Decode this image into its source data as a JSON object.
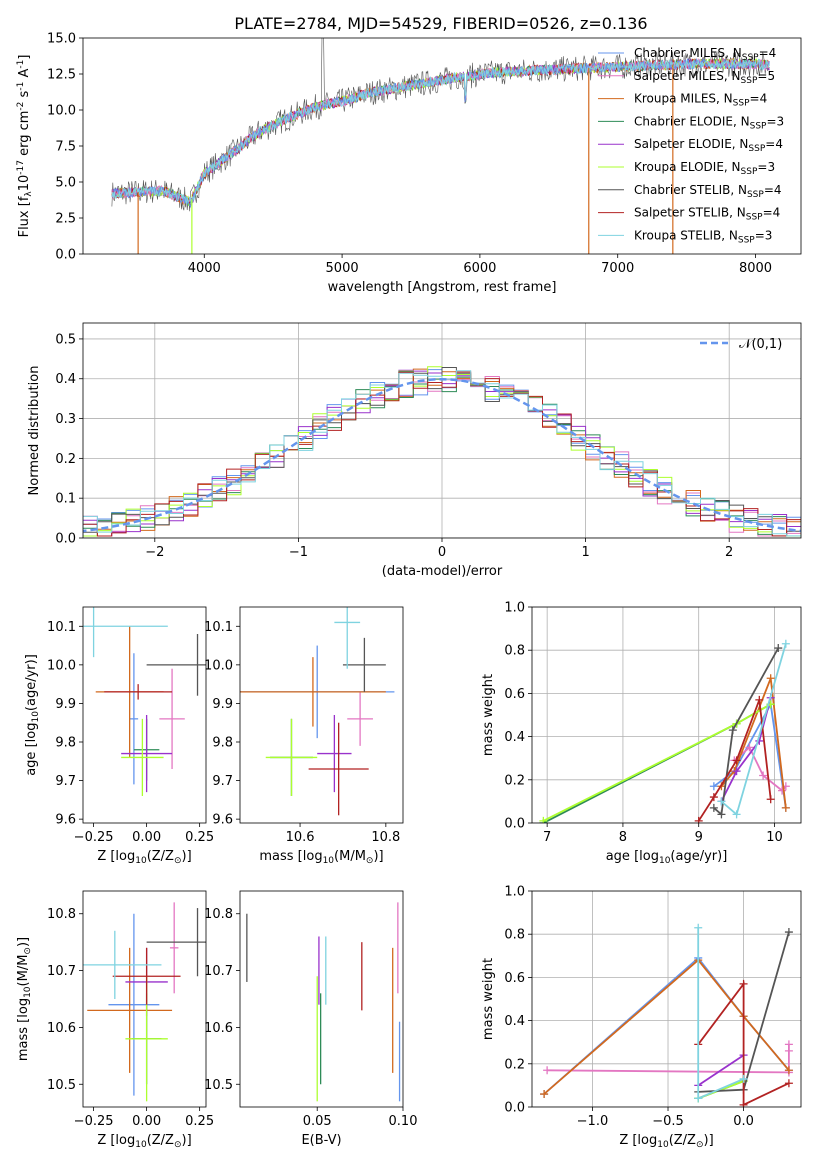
{
  "figure": {
    "title": "PLATE=2784, MJD=54529, FIBERID=0526, z=0.136"
  },
  "chart_data": [
    {
      "type": "line",
      "panel": "spectrum",
      "xlabel": "wavelength [Angstrom, rest frame]",
      "ylabel": "Flux [f$_\\lambda$10$^{-17}$ erg cm$^{-2}$ s$^{-1}$ A$^{-1}$]",
      "xlim": [
        3120,
        8330
      ],
      "ylim": [
        0,
        15
      ],
      "xticks": [
        "4000",
        "5000",
        "6000",
        "7000",
        "8000"
      ],
      "yticks": [
        "0.0",
        "2.5",
        "5.0",
        "7.5",
        "10.0",
        "12.5",
        "15.0"
      ],
      "grid": false,
      "legend_location": "right",
      "legend": [
        {
          "label": "Chabrier MILES, N$_{SSP}$=4",
          "color": "#6495ED"
        },
        {
          "label": "Salpeter MILES, N$_{SSP}$=5",
          "color": "#E377C2"
        },
        {
          "label": "Kroupa MILES, N$_{SSP}$=4",
          "color": "#D2691E"
        },
        {
          "label": "Chabrier ELODIE, N$_{SSP}$=3",
          "color": "#2E8B57"
        },
        {
          "label": "Salpeter ELODIE, N$_{SSP}$=4",
          "color": "#9932CC"
        },
        {
          "label": "Kroupa ELODIE, N$_{SSP}$=3",
          "color": "#ADFF2F"
        },
        {
          "label": "Chabrier STELIB, N$_{SSP}$=4",
          "color": "#555555"
        },
        {
          "label": "Salpeter STELIB, N$_{SSP}$=4",
          "color": "#B22222"
        },
        {
          "label": "Kroupa STELIB, N$_{SSP}$=3",
          "color": "#7FD3E0"
        }
      ],
      "continuum": {
        "x": [
          3330,
          3500,
          3700,
          3900,
          4000,
          4200,
          4400,
          4600,
          4800,
          5000,
          5200,
          5500,
          5800,
          6100,
          6500,
          7000,
          7500,
          8000,
          8100
        ],
        "y": [
          4.2,
          4.3,
          4.4,
          3.6,
          5.6,
          7.0,
          8.5,
          9.4,
          10.2,
          10.6,
          11.2,
          11.7,
          12.2,
          12.6,
          12.8,
          13.0,
          13.2,
          13.2,
          13.1
        ]
      }
    },
    {
      "type": "bar",
      "panel": "residual-histogram",
      "xlabel": "(data-model)/error",
      "ylabel": "Normed distribution",
      "xlim": [
        -2.5,
        2.5
      ],
      "ylim": [
        0,
        0.54
      ],
      "xticks": [
        "−2",
        "−1",
        "0",
        "1",
        "2"
      ],
      "yticks": [
        "0.0",
        "0.1",
        "0.2",
        "0.3",
        "0.4",
        "0.5"
      ],
      "grid": true,
      "legend_location": "upper right",
      "legend": [
        {
          "label": "$\\mathcal{N}(0,1)$",
          "color": "#6495ED",
          "style": "dashed"
        }
      ],
      "series": [
        {
          "name": "Chabrier MILES",
          "color": "#6495ED"
        },
        {
          "name": "Salpeter MILES",
          "color": "#E377C2"
        },
        {
          "name": "Kroupa MILES",
          "color": "#D2691E"
        },
        {
          "name": "Chabrier ELODIE",
          "color": "#2E8B57"
        },
        {
          "name": "Salpeter ELODIE",
          "color": "#9932CC"
        },
        {
          "name": "Kroupa ELODIE",
          "color": "#ADFF2F"
        },
        {
          "name": "Chabrier STELIB",
          "color": "#555555"
        },
        {
          "name": "Salpeter STELIB",
          "color": "#B22222"
        },
        {
          "name": "Kroupa STELIB",
          "color": "#7FD3E0"
        }
      ]
    },
    {
      "type": "scatter",
      "panel": "age-vs-Z",
      "xlabel": "Z [log$_{10}$(Z/Z$_\\odot$)]",
      "ylabel": "age  [log$_{10}$(age/yr)]",
      "xlim": [
        -0.3,
        0.28
      ],
      "ylim": [
        9.59,
        10.15
      ],
      "xticks": [
        "−0.25",
        "0.00",
        "0.25"
      ],
      "yticks": [
        "9.6",
        "9.7",
        "9.8",
        "9.9",
        "10.0",
        "10.1"
      ],
      "grid": false,
      "points": [
        {
          "x": -0.06,
          "y": 9.86,
          "xerr": 0.02,
          "yerr": 0.17,
          "color": "#6495ED"
        },
        {
          "x": 0.12,
          "y": 9.86,
          "xerr": 0.06,
          "yerr": 0.13,
          "color": "#E377C2"
        },
        {
          "x": -0.08,
          "y": 9.93,
          "xerr": 0.16,
          "yerr": 0.17,
          "color": "#D2691E"
        },
        {
          "x": 0.0,
          "y": 9.78,
          "xerr": 0.06,
          "yerr": 0.08,
          "color": "#2E8B57"
        },
        {
          "x": 0.0,
          "y": 9.77,
          "xerr": 0.12,
          "yerr": 0.1,
          "color": "#9932CC"
        },
        {
          "x": -0.02,
          "y": 9.76,
          "xerr": 0.1,
          "yerr": 0.1,
          "color": "#ADFF2F"
        },
        {
          "x": 0.24,
          "y": 10.0,
          "xerr": 0.24,
          "yerr": 0.08,
          "color": "#555555"
        },
        {
          "x": -0.04,
          "y": 9.93,
          "xerr": 0.16,
          "yerr": 0.02,
          "color": "#B22222"
        },
        {
          "x": -0.25,
          "y": 10.1,
          "xerr": 0.35,
          "yerr": 0.08,
          "color": "#7FD3E0"
        }
      ]
    },
    {
      "type": "scatter",
      "panel": "age-vs-mass",
      "xlabel": "mass [log$_{10}$(M/M$_\\odot$)]",
      "ylabel": "",
      "xlim": [
        10.46,
        10.84
      ],
      "ylim": [
        9.59,
        10.15
      ],
      "xticks": [
        "10.6",
        "10.8"
      ],
      "yticks": [
        "9.6",
        "9.7",
        "9.8",
        "9.9",
        "10.0",
        "10.1"
      ],
      "grid": false,
      "points": [
        {
          "x": 10.64,
          "y": 9.93,
          "xerr": 0.18,
          "yerr": 0.12,
          "color": "#6495ED"
        },
        {
          "x": 10.74,
          "y": 9.86,
          "xerr": 0.03,
          "yerr": 0.07,
          "color": "#E377C2"
        },
        {
          "x": 10.63,
          "y": 9.93,
          "xerr": 0.17,
          "yerr": 0.09,
          "color": "#D2691E"
        },
        {
          "x": 10.58,
          "y": 9.76,
          "xerr": 0.05,
          "yerr": 0.1,
          "color": "#2E8B57"
        },
        {
          "x": 10.68,
          "y": 9.77,
          "xerr": 0.04,
          "yerr": 0.1,
          "color": "#9932CC"
        },
        {
          "x": 10.58,
          "y": 9.76,
          "xerr": 0.06,
          "yerr": 0.1,
          "color": "#ADFF2F"
        },
        {
          "x": 10.75,
          "y": 10.0,
          "xerr": 0.05,
          "yerr": 0.07,
          "color": "#555555"
        },
        {
          "x": 10.69,
          "y": 9.73,
          "xerr": 0.07,
          "yerr": 0.12,
          "color": "#B22222"
        },
        {
          "x": 10.71,
          "y": 10.11,
          "xerr": 0.03,
          "yerr": 0.12,
          "color": "#7FD3E0"
        }
      ]
    },
    {
      "type": "line",
      "panel": "massweight-vs-age",
      "xlabel": "age  [log$_{10}$(age/yr)]",
      "ylabel": "mass weight",
      "xlim": [
        6.8,
        10.35
      ],
      "ylim": [
        0,
        1
      ],
      "xticks": [
        "7",
        "8",
        "9",
        "10"
      ],
      "yticks": [
        "0.0",
        "0.2",
        "0.4",
        "0.6",
        "0.8",
        "1.0"
      ],
      "grid": true,
      "series": [
        {
          "name": "Chabrier MILES",
          "color": "#6495ED",
          "x": [
            9.2,
            9.47,
            9.95,
            10.15
          ],
          "y": [
            0.17,
            0.24,
            0.55,
            0.07
          ]
        },
        {
          "name": "Salpeter MILES",
          "color": "#E377C2",
          "x": [
            9.47,
            9.67,
            9.85,
            10.1,
            10.15
          ],
          "y": [
            0.29,
            0.35,
            0.22,
            0.15,
            0.17
          ]
        },
        {
          "name": "Kroupa MILES",
          "color": "#D2691E",
          "x": [
            9.3,
            9.47,
            9.95,
            10.15
          ],
          "y": [
            0.17,
            0.24,
            0.67,
            0.07
          ]
        },
        {
          "name": "Chabrier ELODIE",
          "color": "#2E8B57",
          "x": [
            6.95,
            9.5,
            9.95
          ],
          "y": [
            0.0,
            0.46,
            0.55
          ]
        },
        {
          "name": "Salpeter ELODIE",
          "color": "#9932CC",
          "x": [
            9.3,
            9.5,
            9.8,
            9.95
          ],
          "y": [
            0.1,
            0.24,
            0.38,
            0.58
          ]
        },
        {
          "name": "Kroupa ELODIE",
          "color": "#ADFF2F",
          "x": [
            6.95,
            9.5,
            9.95
          ],
          "y": [
            0.01,
            0.46,
            0.55
          ]
        },
        {
          "name": "Chabrier STELIB",
          "color": "#555555",
          "x": [
            9.2,
            9.3,
            9.45,
            10.05
          ],
          "y": [
            0.07,
            0.04,
            0.43,
            0.81
          ]
        },
        {
          "name": "Salpeter STELIB",
          "color": "#B22222",
          "x": [
            9.0,
            9.2,
            9.5,
            9.8,
            9.95
          ],
          "y": [
            0.01,
            0.12,
            0.29,
            0.57,
            0.11
          ]
        },
        {
          "name": "Kroupa STELIB",
          "color": "#7FD3E0",
          "x": [
            9.3,
            9.5,
            10.15
          ],
          "y": [
            0.1,
            0.04,
            0.83
          ]
        }
      ]
    },
    {
      "type": "scatter",
      "panel": "mass-vs-Z",
      "xlabel": "Z [log$_{10}$(Z/Z$_\\odot$)]",
      "ylabel": "mass [log$_{10}$(M/M$_\\odot$)]",
      "xlim": [
        -0.3,
        0.28
      ],
      "ylim": [
        10.46,
        10.84
      ],
      "xticks": [
        "−0.25",
        "0.00",
        "0.25"
      ],
      "yticks": [
        "10.5",
        "10.6",
        "10.7",
        "10.8"
      ],
      "grid": false,
      "points": [
        {
          "x": -0.06,
          "y": 10.64,
          "xerr": 0.12,
          "yerr": 0.16,
          "color": "#6495ED"
        },
        {
          "x": 0.13,
          "y": 10.74,
          "xerr": 0.02,
          "yerr": 0.08,
          "color": "#E377C2"
        },
        {
          "x": -0.08,
          "y": 10.63,
          "xerr": 0.2,
          "yerr": 0.11,
          "color": "#D2691E"
        },
        {
          "x": 0.0,
          "y": 10.58,
          "xerr": 0.07,
          "yerr": 0.08,
          "color": "#2E8B57"
        },
        {
          "x": 0.0,
          "y": 10.68,
          "xerr": 0.1,
          "yerr": 0.06,
          "color": "#9932CC"
        },
        {
          "x": 0.0,
          "y": 10.58,
          "xerr": 0.1,
          "yerr": 0.11,
          "color": "#ADFF2F"
        },
        {
          "x": 0.24,
          "y": 10.75,
          "xerr": 0.24,
          "yerr": 0.06,
          "color": "#555555"
        },
        {
          "x": 0.0,
          "y": 10.69,
          "xerr": 0.16,
          "yerr": 0.05,
          "color": "#B22222"
        },
        {
          "x": -0.15,
          "y": 10.71,
          "xerr": 0.22,
          "yerr": 0.06,
          "color": "#7FD3E0"
        }
      ]
    },
    {
      "type": "scatter",
      "panel": "mass-vs-EBV",
      "xlabel": "E(B-V)",
      "ylabel": "",
      "xlim": [
        0.005,
        0.1
      ],
      "ylim": [
        10.46,
        10.84
      ],
      "xticks": [
        "0.05",
        "0.10"
      ],
      "yticks": [
        "10.5",
        "10.6",
        "10.7",
        "10.8"
      ],
      "grid": false,
      "points": [
        {
          "x": 0.098,
          "y": 10.54,
          "yerr": 0.07,
          "color": "#6495ED"
        },
        {
          "x": 0.097,
          "y": 10.74,
          "yerr": 0.08,
          "color": "#E377C2"
        },
        {
          "x": 0.094,
          "y": 10.63,
          "yerr": 0.11,
          "color": "#D2691E"
        },
        {
          "x": 0.052,
          "y": 10.58,
          "yerr": 0.08,
          "color": "#2E8B57"
        },
        {
          "x": 0.051,
          "y": 10.7,
          "yerr": 0.06,
          "color": "#9932CC"
        },
        {
          "x": 0.05,
          "y": 10.58,
          "yerr": 0.11,
          "color": "#ADFF2F"
        },
        {
          "x": 0.009,
          "y": 10.74,
          "yerr": 0.06,
          "color": "#555555"
        },
        {
          "x": 0.076,
          "y": 10.69,
          "yerr": 0.06,
          "color": "#B22222"
        },
        {
          "x": 0.055,
          "y": 10.7,
          "yerr": 0.06,
          "color": "#7FD3E0"
        }
      ]
    },
    {
      "type": "line",
      "panel": "massweight-vs-Z",
      "xlabel": "Z [log$_{10}$(Z/Z$_\\odot$)]",
      "ylabel": "mass weight",
      "xlim": [
        -1.4,
        0.38
      ],
      "ylim": [
        0,
        1
      ],
      "xticks": [
        "−1.0",
        "−0.5",
        "0.0"
      ],
      "yticks": [
        "0.0",
        "0.2",
        "0.4",
        "0.6",
        "0.8",
        "1.0"
      ],
      "grid": true,
      "series": [
        {
          "name": "Chabrier MILES",
          "color": "#6495ED",
          "x": [
            -1.32,
            -0.3,
            0.0,
            0.3
          ],
          "y": [
            0.06,
            0.69,
            0.42,
            0.17
          ]
        },
        {
          "name": "Salpeter MILES",
          "color": "#E377C2",
          "x": [
            -1.3,
            0.3,
            0.3,
            0.3
          ],
          "y": [
            0.17,
            0.16,
            0.26,
            0.29
          ]
        },
        {
          "name": "Kroupa MILES",
          "color": "#D2691E",
          "x": [
            -1.32,
            -0.3,
            0.0,
            0.3
          ],
          "y": [
            0.06,
            0.68,
            0.42,
            0.17
          ]
        },
        {
          "name": "Chabrier ELODIE",
          "color": "#2E8B57",
          "x": [
            -0.3,
            0.0
          ],
          "y": [
            0.04,
            0.12
          ]
        },
        {
          "name": "Salpeter ELODIE",
          "color": "#9932CC",
          "x": [
            -0.3,
            0.0
          ],
          "y": [
            0.1,
            0.24
          ]
        },
        {
          "name": "Kroupa ELODIE",
          "color": "#ADFF2F",
          "x": [
            -0.3,
            0.0
          ],
          "y": [
            0.04,
            0.12
          ]
        },
        {
          "name": "Chabrier STELIB",
          "color": "#555555",
          "x": [
            -0.3,
            0.0,
            0.0,
            0.3
          ],
          "y": [
            0.07,
            0.08,
            0.08,
            0.81
          ]
        },
        {
          "name": "Salpeter STELIB",
          "color": "#B22222",
          "x": [
            -0.3,
            0.0,
            0.0,
            0.3
          ],
          "y": [
            0.29,
            0.57,
            0.01,
            0.11
          ]
        },
        {
          "name": "Kroupa STELIB",
          "color": "#7FD3E0",
          "x": [
            -0.3,
            -0.3,
            0.0
          ],
          "y": [
            0.83,
            0.04,
            0.13
          ]
        }
      ]
    }
  ]
}
